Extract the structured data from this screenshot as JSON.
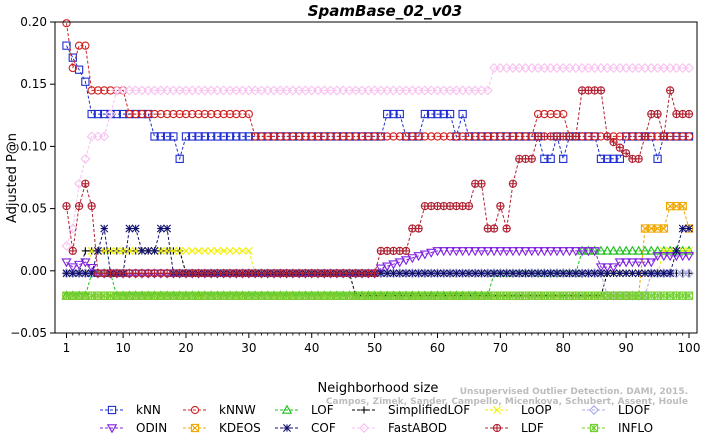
{
  "chart_data": {
    "type": "line",
    "title": "SpamBase_02_v03",
    "xlabel": "Neighborhood size",
    "ylabel": "Adjusted P@n",
    "xlim": [
      1,
      100
    ],
    "ylim": [
      -0.05,
      0.2
    ],
    "xticks": [
      1,
      10,
      20,
      30,
      40,
      50,
      60,
      70,
      80,
      90,
      100
    ],
    "yticks": [
      -0.05,
      0.0,
      0.05,
      0.1,
      0.15,
      0.2
    ],
    "ytick_labels": [
      "−0.05",
      "0.00",
      "0.05",
      "0.10",
      "0.15",
      "0.20"
    ],
    "grid": false,
    "legend_position": "bottom",
    "watermark": [
      "Unsupervised Outlier Detection. DAMI, 2015.",
      "Campos, Zimek, Sander, Campello, Micenkova, Schubert, Assent, Houle"
    ],
    "series": [
      {
        "name": "kNN",
        "color": "#1f2fd0",
        "marker": "square",
        "segments": [
          [
            1,
            0.181
          ],
          [
            4,
            0.152
          ],
          [
            5,
            0.126
          ],
          [
            14,
            0.126
          ],
          [
            15,
            0.108
          ],
          [
            18,
            0.108
          ],
          [
            19,
            0.09
          ],
          [
            20,
            0.108
          ],
          [
            51,
            0.108
          ],
          [
            52,
            0.126
          ],
          [
            54,
            0.126
          ],
          [
            55,
            0.108
          ],
          [
            57,
            0.108
          ],
          [
            58,
            0.126
          ],
          [
            62,
            0.126
          ],
          [
            63,
            0.108
          ],
          [
            64,
            0.126
          ],
          [
            65,
            0.108
          ],
          [
            76,
            0.108
          ],
          [
            77,
            0.09
          ],
          [
            78,
            0.09
          ],
          [
            79,
            0.108
          ],
          [
            80,
            0.09
          ],
          [
            81,
            0.108
          ],
          [
            85,
            0.108
          ],
          [
            86,
            0.09
          ],
          [
            89,
            0.09
          ],
          [
            90,
            0.108
          ],
          [
            94,
            0.108
          ],
          [
            95,
            0.09
          ],
          [
            96,
            0.108
          ],
          [
            100,
            0.108
          ]
        ]
      },
      {
        "name": "kNNW",
        "color": "#d02020",
        "marker": "circle",
        "segments": [
          [
            1,
            0.199
          ],
          [
            2,
            0.163
          ],
          [
            3,
            0.181
          ],
          [
            4,
            0.181
          ],
          [
            5,
            0.145
          ],
          [
            10,
            0.145
          ],
          [
            11,
            0.126
          ],
          [
            30,
            0.126
          ],
          [
            31,
            0.108
          ],
          [
            75,
            0.108
          ],
          [
            76,
            0.126
          ],
          [
            80,
            0.126
          ],
          [
            81,
            0.108
          ],
          [
            100,
            0.108
          ]
        ]
      },
      {
        "name": "LOF",
        "color": "#1ec01e",
        "marker": "triangle-up",
        "segments": [
          [
            1,
            -0.02
          ],
          [
            4,
            -0.02
          ],
          [
            5,
            -0.002
          ],
          [
            8,
            -0.002
          ],
          [
            9,
            -0.02
          ],
          [
            68,
            -0.02
          ],
          [
            69,
            -0.002
          ],
          [
            82,
            -0.002
          ],
          [
            83,
            0.016
          ],
          [
            100,
            0.016
          ]
        ]
      },
      {
        "name": "SimplifiedLOF",
        "color": "#000000",
        "marker": "plus",
        "segments": [
          [
            1,
            -0.002
          ],
          [
            3,
            -0.002
          ],
          [
            4,
            0.016
          ],
          [
            19,
            0.016
          ],
          [
            20,
            -0.002
          ],
          [
            46,
            -0.002
          ],
          [
            47,
            -0.02
          ],
          [
            86,
            -0.02
          ],
          [
            87,
            -0.002
          ],
          [
            100,
            -0.002
          ]
        ]
      },
      {
        "name": "LoOP",
        "color": "#f0f000",
        "marker": "x",
        "segments": [
          [
            1,
            -0.002
          ],
          [
            4,
            -0.002
          ],
          [
            5,
            0.016
          ],
          [
            30,
            0.016
          ],
          [
            31,
            -0.002
          ],
          [
            95,
            -0.002
          ],
          [
            96,
            0.016
          ],
          [
            100,
            0.016
          ]
        ]
      },
      {
        "name": "LDOF",
        "color": "#a8a8e8",
        "marker": "diamond",
        "segments": [
          [
            1,
            -0.002
          ],
          [
            12,
            -0.002
          ],
          [
            13,
            -0.002
          ],
          [
            22,
            -0.002
          ],
          [
            23,
            -0.002
          ],
          [
            86,
            -0.002
          ],
          [
            87,
            -0.02
          ],
          [
            93,
            -0.02
          ],
          [
            94,
            -0.002
          ],
          [
            100,
            -0.002
          ]
        ]
      },
      {
        "name": "ODIN",
        "color": "#8020e0",
        "marker": "triangle-down",
        "segments": [
          [
            1,
            0.007
          ],
          [
            2,
            0.003
          ],
          [
            4,
            0.007
          ],
          [
            6,
            -0.002
          ],
          [
            20,
            -0.002
          ],
          [
            21,
            -0.002
          ],
          [
            50,
            -0.002
          ],
          [
            51,
            0.002
          ],
          [
            54,
            0.007
          ],
          [
            57,
            0.012
          ],
          [
            60,
            0.016
          ],
          [
            85,
            0.016
          ],
          [
            86,
            0.003
          ],
          [
            88,
            0.003
          ],
          [
            89,
            0.007
          ],
          [
            94,
            0.007
          ],
          [
            95,
            0.012
          ],
          [
            100,
            0.012
          ]
        ]
      },
      {
        "name": "KDEOS",
        "color": "#f0a800",
        "marker": "square-x",
        "segments": [
          [
            1,
            -0.02
          ],
          [
            92,
            -0.02
          ],
          [
            93,
            0.034
          ],
          [
            96,
            0.034
          ],
          [
            97,
            0.052
          ],
          [
            99,
            0.052
          ],
          [
            100,
            0.034
          ]
        ]
      },
      {
        "name": "COF",
        "color": "#101070",
        "marker": "asterisk",
        "segments": [
          [
            1,
            -0.002
          ],
          [
            5,
            -0.002
          ],
          [
            6,
            0.016
          ],
          [
            7,
            0.034
          ],
          [
            8,
            -0.002
          ],
          [
            10,
            -0.002
          ],
          [
            11,
            0.034
          ],
          [
            12,
            0.034
          ],
          [
            13,
            0.016
          ],
          [
            15,
            0.016
          ],
          [
            16,
            0.034
          ],
          [
            17,
            0.034
          ],
          [
            18,
            -0.002
          ],
          [
            97,
            -0.002
          ],
          [
            98,
            0.016
          ],
          [
            99,
            0.034
          ],
          [
            100,
            0.034
          ]
        ]
      },
      {
        "name": "FastABOD",
        "color": "#f8c0f0",
        "marker": "diamond",
        "segments": [
          [
            1,
            0.02
          ],
          [
            2,
            0.034
          ],
          [
            3,
            0.07
          ],
          [
            4,
            0.09
          ],
          [
            5,
            0.108
          ],
          [
            7,
            0.108
          ],
          [
            8,
            0.126
          ],
          [
            9,
            0.145
          ],
          [
            10,
            0.145
          ],
          [
            68,
            0.145
          ],
          [
            69,
            0.163
          ],
          [
            100,
            0.163
          ]
        ]
      },
      {
        "name": "LDF",
        "color": "#b02030",
        "marker": "circle-plus",
        "segments": [
          [
            1,
            0.052
          ],
          [
            2,
            0.016
          ],
          [
            3,
            0.052
          ],
          [
            4,
            0.07
          ],
          [
            5,
            0.052
          ],
          [
            6,
            -0.002
          ],
          [
            50,
            -0.002
          ],
          [
            51,
            0.016
          ],
          [
            55,
            0.016
          ],
          [
            56,
            0.034
          ],
          [
            57,
            0.034
          ],
          [
            58,
            0.052
          ],
          [
            65,
            0.052
          ],
          [
            66,
            0.07
          ],
          [
            67,
            0.07
          ],
          [
            68,
            0.034
          ],
          [
            69,
            0.034
          ],
          [
            70,
            0.052
          ],
          [
            71,
            0.034
          ],
          [
            72,
            0.07
          ],
          [
            73,
            0.09
          ],
          [
            75,
            0.09
          ],
          [
            76,
            0.108
          ],
          [
            82,
            0.108
          ],
          [
            83,
            0.145
          ],
          [
            86,
            0.145
          ],
          [
            87,
            0.108
          ],
          [
            91,
            0.09
          ],
          [
            92,
            0.09
          ],
          [
            93,
            0.108
          ],
          [
            94,
            0.126
          ],
          [
            95,
            0.126
          ],
          [
            96,
            0.108
          ],
          [
            97,
            0.145
          ],
          [
            98,
            0.126
          ],
          [
            100,
            0.126
          ]
        ]
      },
      {
        "name": "INFLO",
        "color": "#70d030",
        "marker": "square-star",
        "segments": [
          [
            1,
            -0.02
          ],
          [
            100,
            -0.02
          ]
        ]
      }
    ]
  }
}
